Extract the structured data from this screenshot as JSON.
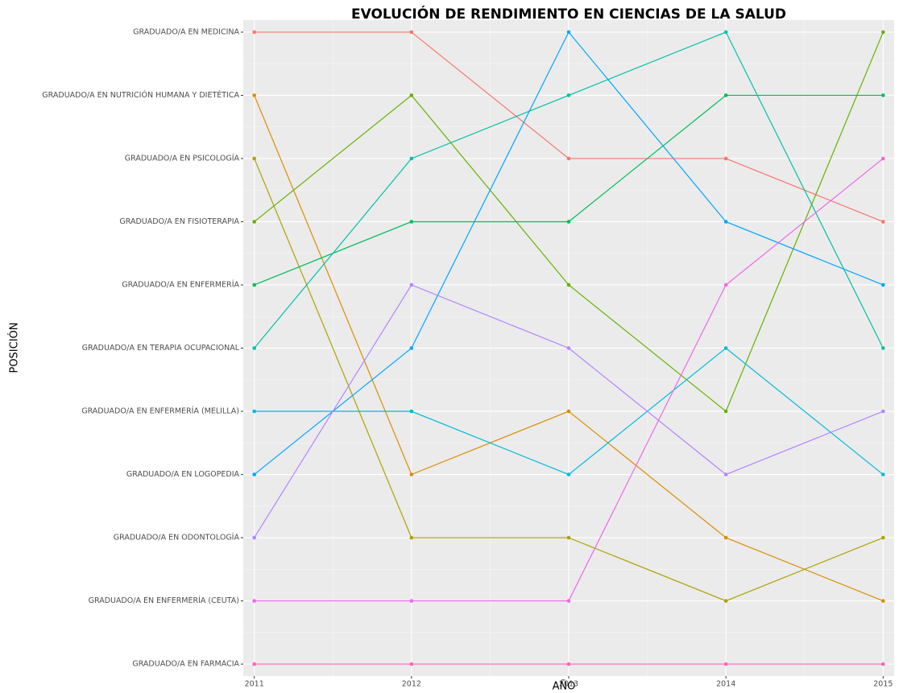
{
  "chart_data": {
    "type": "line",
    "title": "EVOLUCIÓN DE RENDIMIENTO EN CIENCIAS DE LA SALUD",
    "x_label": "AÑO",
    "y_label": "POSICIÓN",
    "x": [
      2011,
      2012,
      2013,
      2014,
      2015
    ],
    "xlim": [
      2010.93,
      2015.07
    ],
    "xticks": [
      2011,
      2012,
      2013,
      2014,
      2015
    ],
    "ylim": [
      0.81,
      11.19
    ],
    "y_reversed": true,
    "yticks": [
      {
        "value": 1,
        "label": "GRADUADO/A EN MEDICINA"
      },
      {
        "value": 2,
        "label": "GRADUADO/A EN NUTRICIÓN HUMANA Y DIETÉTICA"
      },
      {
        "value": 3,
        "label": "GRADUADO/A EN PSICOLOGÍA"
      },
      {
        "value": 4,
        "label": "GRADUADO/A EN FISIOTERAPIA"
      },
      {
        "value": 5,
        "label": "GRADUADO/A EN ENFERMERÍA"
      },
      {
        "value": 6,
        "label": "GRADUADO/A EN TERAPIA OCUPACIONAL"
      },
      {
        "value": 7,
        "label": "GRADUADO/A EN ENFERMERÍA (MELILLA)"
      },
      {
        "value": 8,
        "label": "GRADUADO/A EN LOGOPEDIA"
      },
      {
        "value": 9,
        "label": "GRADUADO/A EN ODONTOLOGÍA"
      },
      {
        "value": 10,
        "label": "GRADUADO/A EN ENFERMERÍA (CEUTA)"
      },
      {
        "value": 11,
        "label": "GRADUADO/A EN FARMACIA"
      }
    ],
    "grid": true,
    "series": [
      {
        "color": "#F8766D",
        "values": [
          1,
          1,
          3,
          3,
          4
        ]
      },
      {
        "color": "#DB8E00",
        "values": [
          2,
          8,
          7,
          9,
          10
        ]
      },
      {
        "color": "#AEA200",
        "values": [
          3,
          9,
          9,
          10,
          9
        ]
      },
      {
        "color": "#64B200",
        "values": [
          4,
          2,
          5,
          7,
          1
        ]
      },
      {
        "color": "#00BD5C",
        "values": [
          5,
          4,
          4,
          2,
          2
        ]
      },
      {
        "color": "#00C1A7",
        "values": [
          6,
          3,
          2,
          1,
          6
        ]
      },
      {
        "color": "#00BADE",
        "values": [
          7,
          7,
          8,
          6,
          8
        ]
      },
      {
        "color": "#00A6FF",
        "values": [
          8,
          6,
          1,
          4,
          5
        ]
      },
      {
        "color": "#B385FF",
        "values": [
          9,
          5,
          6,
          8,
          7
        ]
      },
      {
        "color": "#EF67EB",
        "values": [
          10,
          10,
          10,
          5,
          3
        ]
      },
      {
        "color": "#FF63B6",
        "values": [
          11,
          11,
          11,
          11,
          11
        ]
      }
    ]
  }
}
